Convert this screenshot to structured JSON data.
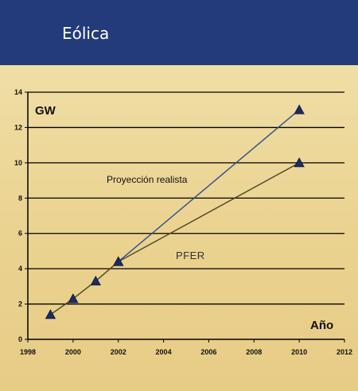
{
  "header": {
    "title": "Eólica"
  },
  "colors": {
    "header_bg": "#233b7a",
    "chart_bg": "#ecd79a",
    "realista_line": "#2f4f8f",
    "pfer_line": "#4a4520",
    "marker": "#1c2b63",
    "grid": "#000000"
  },
  "chart_data": {
    "type": "line",
    "title": "",
    "ylabel": "GW",
    "xlabel": "Año",
    "xlim": [
      1998,
      2012
    ],
    "ylim": [
      0,
      14
    ],
    "x_ticks": [
      "1998",
      "2000",
      "2002",
      "2004",
      "2006",
      "2008",
      "2010",
      "2012"
    ],
    "y_ticks": [
      "0",
      "2",
      "4",
      "6",
      "8",
      "10",
      "12",
      "14"
    ],
    "grid": "horizontal",
    "series": [
      {
        "name": "Proyección realista",
        "points": [
          [
            2002,
            4.4
          ],
          [
            2010,
            13
          ]
        ]
      },
      {
        "name": "PFER",
        "points": [
          [
            1999,
            1.4
          ],
          [
            2000,
            2.3
          ],
          [
            2001,
            3.3
          ],
          [
            2002,
            4.4
          ],
          [
            2010,
            10
          ]
        ]
      }
    ]
  }
}
